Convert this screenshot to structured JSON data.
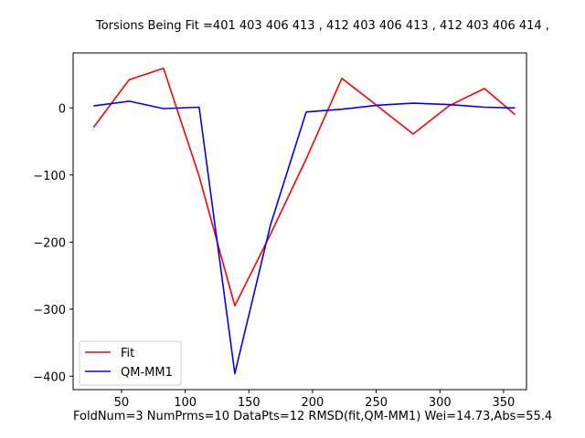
{
  "chart_data": {
    "type": "line",
    "title": "Torsions Being Fit =401 403 406 413 , 412 403 406 413 , 412 403 406 414 ,",
    "footer": "FoldNum=3 NumPrms=10 DataPts=12 RMSD(fit,QM-MM1) Wei=14.73,Abs=55.4",
    "xlabel": "",
    "ylabel": "",
    "xlim": [
      12,
      368
    ],
    "ylim": [
      -420,
      82
    ],
    "xticks": [
      50,
      100,
      150,
      200,
      250,
      300,
      350
    ],
    "yticks": [
      0,
      -100,
      -200,
      -300,
      -400
    ],
    "grid": false,
    "legend_position": "lower-left",
    "series": [
      {
        "name": "Fit",
        "color": "#ff0000",
        "x": [
          28,
          56,
          83,
          111,
          139,
          167,
          195,
          223,
          251,
          279,
          307,
          335,
          359
        ],
        "y": [
          -29,
          42,
          59,
          -102,
          -295,
          -188,
          -76,
          44,
          3,
          -39,
          3,
          29,
          -10
        ]
      },
      {
        "name": "QM-MM1",
        "color": "#0000ff",
        "x": [
          28,
          56,
          83,
          111,
          139,
          167,
          195,
          223,
          251,
          279,
          307,
          335,
          359
        ],
        "y": [
          3,
          10,
          -1,
          1,
          -396,
          -174,
          -6,
          -2,
          4,
          7,
          5,
          1,
          0
        ]
      }
    ]
  }
}
